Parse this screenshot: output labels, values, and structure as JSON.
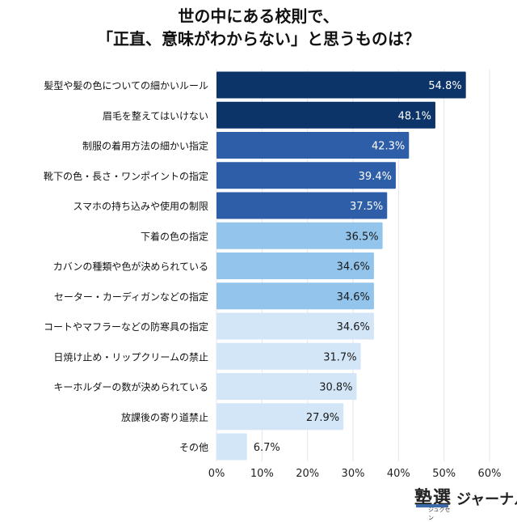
{
  "chart_data": {
    "type": "bar",
    "orientation": "horizontal",
    "title_lines": [
      "世の中にある校則で、",
      "「正直、意味がわからない」と思うものは？"
    ],
    "categories": [
      "髪型や髪の色についての細かいルール",
      "眉毛を整えてはいけない",
      "制服の着用方法の細かい指定",
      "靴下の色・長さ・ワンポイントの指定",
      "スマホの持ち込みや使用の制限",
      "下着の色の指定",
      "カバンの種類や色が決められている",
      "セーター・カーディガンなどの指定",
      "コートやマフラーなどの防寒具の指定",
      "日焼け止め・リップクリームの禁止",
      "キーホルダーの数が決められている",
      "放課後の寄り道禁止",
      "その他"
    ],
    "values": [
      54.8,
      48.1,
      42.3,
      39.4,
      37.5,
      36.5,
      34.6,
      34.6,
      34.6,
      31.7,
      30.8,
      27.9,
      6.7
    ],
    "value_labels": [
      "54.8%",
      "48.1%",
      "42.3%",
      "39.4%",
      "37.5%",
      "36.5%",
      "34.6%",
      "34.6%",
      "34.6%",
      "31.7%",
      "30.8%",
      "27.9%",
      "6.7%"
    ],
    "xlim": [
      0,
      60
    ],
    "xticks": [
      0,
      10,
      20,
      30,
      40,
      50,
      60
    ],
    "xtick_labels": [
      "0%",
      "10%",
      "20%",
      "30%",
      "40%",
      "50%",
      "60%"
    ],
    "grid": true,
    "bar_colors": [
      "#0d3468",
      "#0d3468",
      "#2f5ea8",
      "#2f5ea8",
      "#2f5ea8",
      "#93c5ec",
      "#93c5ec",
      "#93c5ec",
      "#d3e6f8",
      "#d3e6f8",
      "#d3e6f8",
      "#d3e6f8",
      "#d3e6f8"
    ],
    "label_colors": [
      "#ffffff",
      "#ffffff",
      "#ffffff",
      "#ffffff",
      "#ffffff",
      "#1a1a1a",
      "#1a1a1a",
      "#1a1a1a",
      "#1a1a1a",
      "#1a1a1a",
      "#1a1a1a",
      "#1a1a1a",
      "#1a1a1a"
    ]
  },
  "logo": {
    "main": "塾選",
    "sub": "ジュクセン",
    "right": "ジャーナル"
  }
}
